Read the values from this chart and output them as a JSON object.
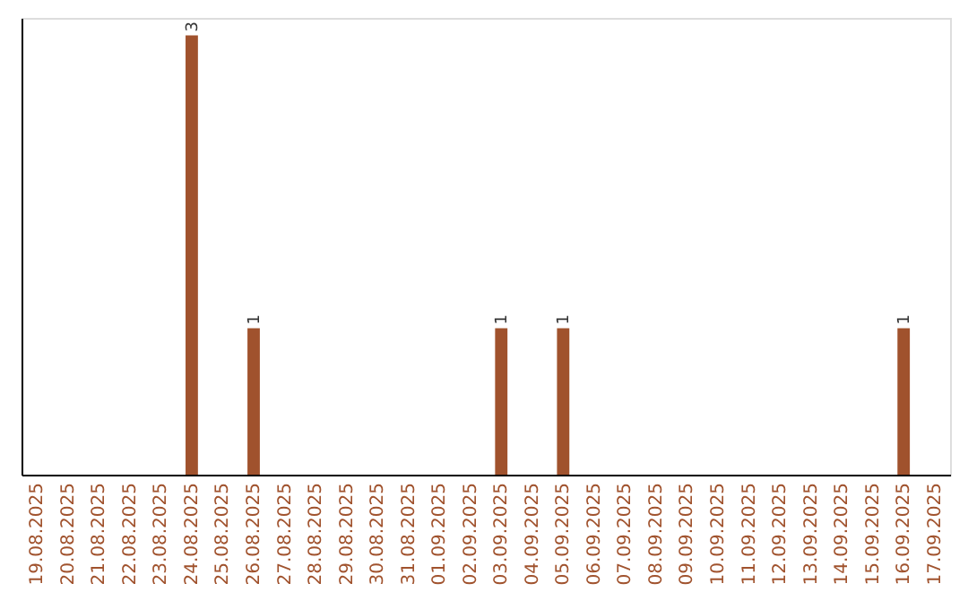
{
  "chart_data": {
    "type": "bar",
    "categories": [
      "19.08.2025",
      "20.08.2025",
      "21.08.2025",
      "22.08.2025",
      "23.08.2025",
      "24.08.2025",
      "25.08.2025",
      "26.08.2025",
      "27.08.2025",
      "28.08.2025",
      "29.08.2025",
      "30.08.2025",
      "31.08.2025",
      "01.09.2025",
      "02.09.2025",
      "03.09.2025",
      "04.09.2025",
      "05.09.2025",
      "06.09.2025",
      "07.09.2025",
      "08.09.2025",
      "09.09.2025",
      "10.09.2025",
      "11.09.2025",
      "12.09.2025",
      "13.09.2025",
      "14.09.2025",
      "15.09.2025",
      "16.09.2025",
      "17.09.2025"
    ],
    "values": [
      0,
      0,
      0,
      0,
      0,
      3,
      0,
      1,
      0,
      0,
      0,
      0,
      0,
      0,
      0,
      1,
      0,
      1,
      0,
      0,
      0,
      0,
      0,
      0,
      0,
      0,
      0,
      0,
      1,
      0
    ],
    "value_labels": [
      null,
      null,
      null,
      null,
      null,
      "3",
      null,
      "1",
      null,
      null,
      null,
      null,
      null,
      null,
      null,
      "1",
      null,
      "1",
      null,
      null,
      null,
      null,
      null,
      null,
      null,
      null,
      null,
      null,
      "1",
      null
    ],
    "color": "#a0522d",
    "tick_labels": "x",
    "grid": false
  }
}
